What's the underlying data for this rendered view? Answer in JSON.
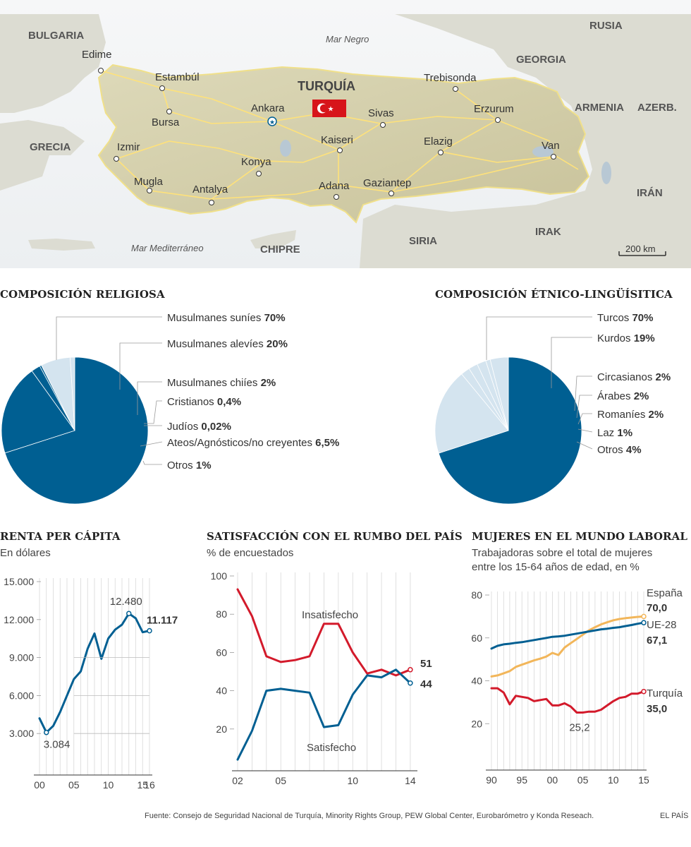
{
  "map": {
    "sea_north": "Mar Negro",
    "sea_south": "Mar Mediterráneo",
    "country": "TURQUÍA",
    "countries": [
      "BULGARIA",
      "GRECIA",
      "RUSIA",
      "GEORGIA",
      "ARMENIA",
      "AZERB.",
      "IRÁN",
      "IRAK",
      "SIRIA",
      "CHIPRE"
    ],
    "cities": [
      "Edime",
      "Estambúl",
      "Bursa",
      "Izmir",
      "Mugla",
      "Antalya",
      "Konya",
      "Ankara",
      "Kaiseri",
      "Sivas",
      "Trebisonda",
      "Erzurum",
      "Elazig",
      "Van",
      "Adana",
      "Gaziantep"
    ],
    "scale": "200 km",
    "colors": {
      "land": "#d9d5b8",
      "sea": "#eef0f2",
      "roads": "#ffe27a",
      "flag": "#d7141a"
    }
  },
  "religion": {
    "title": "COMPOSICIÓN RELIGIOSA",
    "slices": [
      {
        "label": "Musulmanes suníes",
        "value": "70%"
      },
      {
        "label": "Musulmanes alevíes",
        "value": "20%"
      },
      {
        "label": "Musulmanes chiíes",
        "value": "2%"
      },
      {
        "label": "Cristianos",
        "value": "0,4%"
      },
      {
        "label": "Judíos",
        "value": "0,02%"
      },
      {
        "label": "Ateos/Agnósticos/no creyentes",
        "value": "6,5%"
      },
      {
        "label": "Otros",
        "value": "1%"
      }
    ]
  },
  "ethnic": {
    "title": "COMPOSICIÓN ÉTNICO-LINGÜÍSITICA",
    "slices": [
      {
        "label": "Turcos",
        "value": "70%"
      },
      {
        "label": "Kurdos",
        "value": "19%"
      },
      {
        "label": "Circasianos",
        "value": "2%"
      },
      {
        "label": "Árabes",
        "value": "2%"
      },
      {
        "label": "Romaníes",
        "value": "2%"
      },
      {
        "label": "Laz",
        "value": "1%"
      },
      {
        "label": "Otros",
        "value": "4%"
      }
    ]
  },
  "renta": {
    "title": "RENTA PER CÁPITA",
    "subtitle": "En dólares"
  },
  "satisfaccion": {
    "title": "SATISFACCIÓN CON EL RUMBO DEL PAÍS",
    "subtitle": "% de encuestados"
  },
  "mujeres": {
    "title": "MUJERES EN EL MUNDO LABORAL",
    "subtitle_1": "Trabajadoras sobre el total de mujeres",
    "subtitle_2": "entre los 15-64 años de edad, en %"
  },
  "footer": {
    "source": "Fuente: Consejo de Seguridad Nacional de Turquía, Minority Rights Group, PEW Global Center, Eurobarómetro y Konda Reseach.",
    "brand": "EL PAÍS"
  },
  "chart_data": [
    {
      "type": "pie",
      "title": "COMPOSICIÓN RELIGIOSA",
      "categories": [
        "Musulmanes suníes",
        "Musulmanes alevíes",
        "Musulmanes chiíes",
        "Cristianos",
        "Judíos",
        "Ateos/Agnósticos/no creyentes",
        "Otros"
      ],
      "values": [
        70,
        20,
        2,
        0.4,
        0.02,
        6.5,
        1
      ],
      "colors": [
        "#005f92",
        "#005f92",
        "#005f92",
        "#005f92",
        "#005f92",
        "#d4e4ef",
        "#d4e4ef"
      ]
    },
    {
      "type": "pie",
      "title": "COMPOSICIÓN ÉTNICO-LINGÜÍSITICA",
      "categories": [
        "Turcos",
        "Kurdos",
        "Circasianos",
        "Árabes",
        "Romaníes",
        "Laz",
        "Otros"
      ],
      "values": [
        70,
        19,
        2,
        2,
        2,
        1,
        4
      ],
      "colors": [
        "#005f92",
        "#d4e4ef",
        "#d4e4ef",
        "#d4e4ef",
        "#d4e4ef",
        "#d4e4ef",
        "#d4e4ef"
      ]
    },
    {
      "type": "line",
      "title": "RENTA PER CÁPITA",
      "subtitle": "En dólares",
      "x": [
        2000,
        2001,
        2002,
        2003,
        2004,
        2005,
        2006,
        2007,
        2008,
        2009,
        2010,
        2011,
        2012,
        2013,
        2014,
        2015,
        2016
      ],
      "xticks": [
        2000,
        2005,
        2010,
        2015,
        2016
      ],
      "xtick_labels": [
        "00",
        "05",
        "10",
        "15",
        "16"
      ],
      "ylim": [
        0,
        15000
      ],
      "yticks": [
        3000,
        6000,
        9000,
        12000,
        15000
      ],
      "ytick_labels": [
        "3.000",
        "6.000",
        "9.000",
        "12.000",
        "15.000"
      ],
      "series": [
        {
          "values": [
            4200,
            3084,
            3600,
            4700,
            6000,
            7300,
            7900,
            9700,
            10900,
            8900,
            10500,
            11200,
            11600,
            12480,
            12100,
            11000,
            11117
          ],
          "color": "#005f92"
        }
      ],
      "annotations": [
        {
          "x": 2001,
          "y": 3084,
          "text": "3.084"
        },
        {
          "x": 2013,
          "y": 12480,
          "text": "12.480"
        },
        {
          "x": 2016,
          "y": 11117,
          "text": "11.117"
        }
      ]
    },
    {
      "type": "line",
      "title": "SATISFACCIÓN CON EL RUMBO DEL PAÍS",
      "subtitle": "% de encuestados",
      "x": [
        2002,
        2003,
        2004,
        2005,
        2006,
        2007,
        2008,
        2009,
        2010,
        2011,
        2012,
        2013,
        2014
      ],
      "xticks": [
        2002,
        2005,
        2010,
        2014
      ],
      "xtick_labels": [
        "02",
        "05",
        "10",
        "14"
      ],
      "ylim": [
        0,
        100
      ],
      "yticks": [
        20,
        40,
        60,
        80,
        100
      ],
      "series": [
        {
          "name": "Insatisfecho",
          "values": [
            93,
            79,
            58,
            55,
            56,
            58,
            75,
            75,
            60,
            49,
            51,
            48,
            51
          ],
          "color": "#d31a2b"
        },
        {
          "name": "Satisfecho",
          "values": [
            4,
            19,
            40,
            41,
            40,
            39,
            21,
            22,
            38,
            48,
            47,
            51,
            44
          ],
          "color": "#005f92"
        }
      ],
      "annotations": [
        {
          "x": 2014,
          "y": 51,
          "text": "51"
        },
        {
          "x": 2014,
          "y": 44,
          "text": "44"
        }
      ]
    },
    {
      "type": "line",
      "title": "MUJERES EN EL MUNDO LABORAL",
      "subtitle": "Trabajadoras sobre el total de mujeres entre los 15-64 años de edad, en %",
      "x": [
        1990,
        1991,
        1992,
        1993,
        1994,
        1995,
        1996,
        1997,
        1998,
        1999,
        2000,
        2001,
        2002,
        2003,
        2004,
        2005,
        2006,
        2007,
        2008,
        2009,
        2010,
        2011,
        2012,
        2013,
        2014,
        2015
      ],
      "xticks": [
        1990,
        1995,
        2000,
        2005,
        2010,
        2015
      ],
      "xtick_labels": [
        "90",
        "95",
        "00",
        "05",
        "10",
        "15"
      ],
      "ylim": [
        0,
        80
      ],
      "yticks": [
        20,
        40,
        60,
        80
      ],
      "series": [
        {
          "name": "España",
          "values": [
            42,
            42.5,
            43.5,
            44.5,
            46.5,
            47.5,
            48.5,
            49.5,
            50.3,
            51.3,
            53,
            52,
            55.5,
            57.5,
            59.5,
            61.5,
            63.5,
            65,
            66.3,
            67.3,
            68.2,
            68.8,
            69.2,
            69.5,
            69.8,
            70.0
          ],
          "color": "#f2b65a"
        },
        {
          "name": "UE-28",
          "values": [
            55,
            56.3,
            57,
            57.3,
            57.7,
            58,
            58.5,
            59,
            59.5,
            60,
            60.5,
            60.7,
            61,
            61.5,
            62,
            62.5,
            63,
            63.5,
            64,
            64.3,
            64.7,
            65,
            65.5,
            66,
            66.6,
            67.1
          ],
          "color": "#005f92"
        },
        {
          "name": "Turquía",
          "values": [
            36.5,
            36.5,
            34.5,
            29,
            33,
            32.5,
            32,
            30.5,
            31,
            31.5,
            28.5,
            28.5,
            29.5,
            28,
            25.2,
            25.2,
            25.6,
            25.6,
            26.5,
            28.5,
            30.5,
            32,
            32.5,
            34,
            34,
            35.0
          ],
          "color": "#d31a2b"
        }
      ],
      "annotations": [
        {
          "x": 2015,
          "y": 70.0,
          "text": "70,0"
        },
        {
          "x": 2015,
          "y": 67.1,
          "text": "67,1"
        },
        {
          "x": 2015,
          "y": 35.0,
          "text": "35,0"
        },
        {
          "x": 2004,
          "y": 25.2,
          "text": "25,2"
        }
      ]
    }
  ]
}
